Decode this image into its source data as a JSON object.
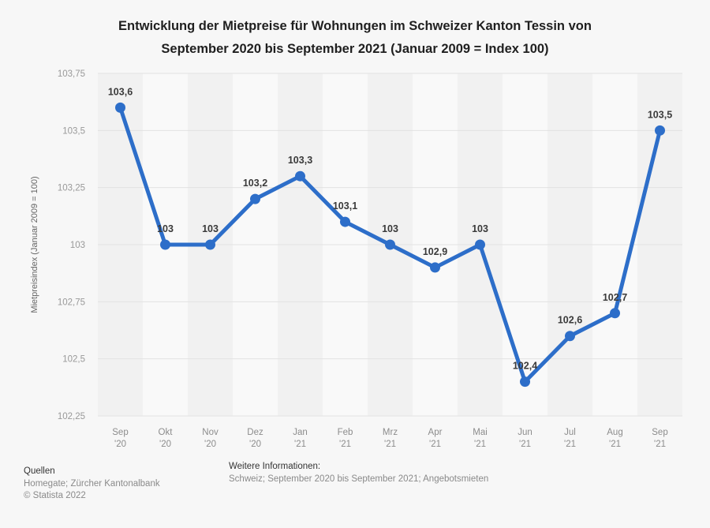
{
  "title": {
    "line1": "Entwicklung der Mietpreise für Wohnungen im Schweizer Kanton Tessin von",
    "line2": "September 2020 bis September 2021 (Januar 2009 = Index 100)"
  },
  "chart_data": {
    "type": "line",
    "title": "Entwicklung der Mietpreise für Wohnungen im Schweizer Kanton Tessin von September 2020 bis September 2021 (Januar 2009 = Index 100)",
    "ylabel": "Mietpreisindex (Januar 2009 = 100)",
    "xlabel": "",
    "ylim": [
      102.25,
      103.75
    ],
    "grid": true,
    "legend": "none",
    "line_color": "#2d6ec9",
    "categories": [
      "Sep '20",
      "Okt '20",
      "Nov '20",
      "Dez '20",
      "Jan '21",
      "Feb '21",
      "Mrz '21",
      "Apr '21",
      "Mai '21",
      "Jun '21",
      "Jul '21",
      "Aug '21",
      "Sep '21"
    ],
    "values": [
      103.6,
      103,
      103,
      103.2,
      103.3,
      103.1,
      103,
      102.9,
      103,
      102.4,
      102.6,
      102.7,
      103.5
    ],
    "value_labels": [
      "103,6",
      "103",
      "103",
      "103,2",
      "103,3",
      "103,1",
      "103",
      "102,9",
      "103",
      "102,4",
      "102,6",
      "102,7",
      "103,5"
    ],
    "ytick_values": [
      103.75,
      103.5,
      103.25,
      103,
      102.75,
      102.5,
      102.25
    ],
    "ytick_labels": [
      "103,75",
      "103,5",
      "103,25",
      "103",
      "102,75",
      "102,5",
      "102,25"
    ]
  },
  "footer": {
    "sources_heading": "Quellen",
    "sources": "Homegate; Zürcher Kantonalbank",
    "copyright": "© Statista 2022",
    "info_heading": "Weitere Informationen:",
    "info": "Schweiz; September 2020 bis September 2021; Angebotsmieten"
  },
  "colors": {
    "line": "#2d6ec9",
    "band_dark": "#f1f1f1",
    "band_light": "#f9f9f9",
    "gridline": "#e2e2e2",
    "tick_text": "#999999",
    "data_label": "#3a3a3a",
    "background": "#f7f7f7"
  }
}
